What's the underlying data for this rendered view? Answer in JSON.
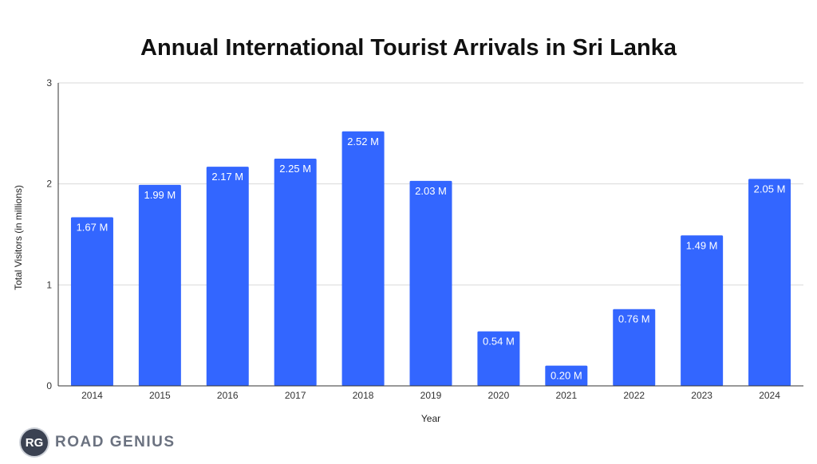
{
  "chart_data": {
    "type": "bar",
    "title": "Annual International Tourist Arrivals in Sri Lanka",
    "xlabel": "Year",
    "ylabel": "Total Visitors (in millions)",
    "categories": [
      "2014",
      "2015",
      "2016",
      "2017",
      "2018",
      "2019",
      "2020",
      "2021",
      "2022",
      "2023",
      "2024"
    ],
    "values": [
      1.67,
      1.99,
      2.17,
      2.25,
      2.52,
      2.03,
      0.54,
      0.2,
      0.76,
      1.49,
      2.05
    ],
    "data_labels": [
      "1.67 M",
      "1.99 M",
      "2.17 M",
      "2.25 M",
      "2.52 M",
      "2.03 M",
      "0.54 M",
      "0.20 M",
      "0.76 M",
      "1.49 M",
      "2.05 M"
    ],
    "ylim": [
      0,
      3
    ],
    "yticks": [
      0,
      1,
      2,
      3
    ],
    "grid": true,
    "bar_color": "#3366ff"
  },
  "brand": {
    "badge": "RG",
    "name": "ROAD GENIUS"
  }
}
